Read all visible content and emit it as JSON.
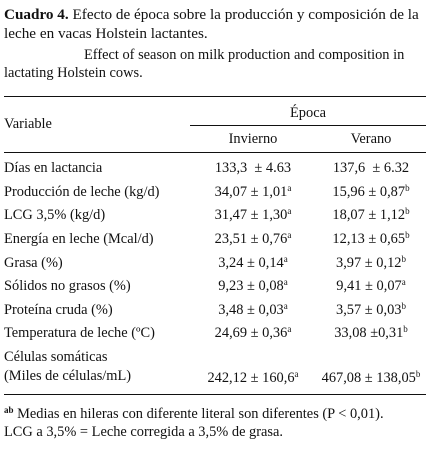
{
  "caption": {
    "label": "Cuadro 4.",
    "title_es": " Efecto de época sobre la producción y composición de la leche en vacas Holstein lactantes.",
    "title_en": "Effect of season on milk production and composition in lactating Holstein cows."
  },
  "table": {
    "header": {
      "variable": "Variable",
      "group": "Época",
      "col1": "Invierno",
      "col2": "Verano"
    },
    "rows": [
      {
        "label": "Días en lactancia",
        "inv": "133,3  ± 4.63",
        "inv_sup": "",
        "ver": "137,6  ± 6.32",
        "ver_sup": ""
      },
      {
        "label": "Producción de leche (kg/d)",
        "inv": "34,07 ± 1,01",
        "inv_sup": "a",
        "ver": "15,96 ± 0,87",
        "ver_sup": "b"
      },
      {
        "label": "LCG 3,5% (kg/d)",
        "inv": "31,47 ± 1,30",
        "inv_sup": "a",
        "ver": "18,07 ± 1,12",
        "ver_sup": "b"
      },
      {
        "label": "Energía en leche (Mcal/d)",
        "inv": "23,51 ± 0,76",
        "inv_sup": "a",
        "ver": "12,13 ± 0,65",
        "ver_sup": "b"
      },
      {
        "label": "Grasa (%)",
        "inv": "3,24 ± 0,14",
        "inv_sup": "a",
        "ver": "3,97 ± 0,12",
        "ver_sup": "b"
      },
      {
        "label": "Sólidos no grasos (%)",
        "inv": "9,23 ± 0,08",
        "inv_sup": "a",
        "ver": "9,41 ± 0,07",
        "ver_sup": "a"
      },
      {
        "label": "Proteína cruda (%)",
        "inv": "3,48 ± 0,03",
        "inv_sup": "a",
        "ver": "3,57 ± 0,03",
        "ver_sup": "b"
      },
      {
        "label": "Temperatura de leche (ºC)",
        "inv": "24,69 ± 0,36",
        "inv_sup": "a",
        "ver": "33,08 ±0,31",
        "ver_sup": "b"
      }
    ],
    "last_row": {
      "label_line1": "Células somáticas",
      "label_line2": "(Miles de células/mL)",
      "inv": "242,12 ± 160,6",
      "inv_sup": "a",
      "ver": "467,08 ± 138,05",
      "ver_sup": "b"
    }
  },
  "footnote": {
    "marker": "ab",
    "line1": " Medias en hileras con diferente literal son diferentes (P < 0,01).",
    "line2": "LCG a 3,5% =  Leche corregida a 3,5% de grasa."
  }
}
